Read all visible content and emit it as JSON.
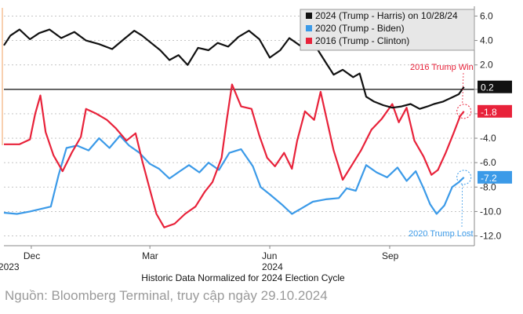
{
  "chart_data": {
    "type": "line",
    "subtitle": "Historic Data Normalized for 2024 Election Cycle",
    "ylim": [
      -12.8,
      6.8
    ],
    "y_ticks": [
      "6.0",
      "4.0",
      "2.0",
      "0.0",
      "-2.0",
      "-4.0",
      "-6.0",
      "-8.0",
      "-10.0",
      "-12.0"
    ],
    "y_tick_values": [
      6,
      4,
      2,
      0,
      -2,
      -4,
      -6,
      -8,
      -10,
      -12
    ],
    "x_range": [
      "2023-11-10",
      "2024-11-05"
    ],
    "x_ticks": [
      {
        "month": "Dec",
        "year": "2023",
        "date": "2023-12-01"
      },
      {
        "month": "Mar",
        "year": "",
        "date": "2024-03-01"
      },
      {
        "month": "Jun",
        "year": "2024",
        "date": "2024-06-01"
      },
      {
        "month": "Sep",
        "year": "",
        "date": "2024-09-01"
      }
    ],
    "grid": "horizontal-dashed",
    "zero_line": true,
    "legend_position": "top-right",
    "series": [
      {
        "name": "2024 (Trump - Harris) on 10/28/24",
        "color": "#111111",
        "last_value": "0.2",
        "points": [
          [
            "2023-11-10",
            3.6
          ],
          [
            "2023-11-15",
            4.4
          ],
          [
            "2023-11-22",
            4.9
          ],
          [
            "2023-11-30",
            4.1
          ],
          [
            "2023-12-07",
            4.6
          ],
          [
            "2023-12-15",
            4.9
          ],
          [
            "2023-12-24",
            4.2
          ],
          [
            "2024-01-03",
            4.7
          ],
          [
            "2024-01-12",
            4.0
          ],
          [
            "2024-01-22",
            3.7
          ],
          [
            "2024-02-01",
            3.3
          ],
          [
            "2024-02-10",
            4.1
          ],
          [
            "2024-02-18",
            4.8
          ],
          [
            "2024-02-24",
            4.4
          ],
          [
            "2024-03-02",
            3.8
          ],
          [
            "2024-03-09",
            3.2
          ],
          [
            "2024-03-16",
            2.4
          ],
          [
            "2024-03-23",
            2.8
          ],
          [
            "2024-03-30",
            2.0
          ],
          [
            "2024-04-07",
            3.4
          ],
          [
            "2024-04-15",
            3.2
          ],
          [
            "2024-04-22",
            3.8
          ],
          [
            "2024-04-30",
            3.5
          ],
          [
            "2024-05-08",
            4.3
          ],
          [
            "2024-05-16",
            4.8
          ],
          [
            "2024-05-24",
            4.1
          ],
          [
            "2024-06-01",
            2.6
          ],
          [
            "2024-06-09",
            3.2
          ],
          [
            "2024-06-16",
            4.2
          ],
          [
            "2024-06-24",
            3.6
          ],
          [
            "2024-07-01",
            3.8
          ],
          [
            "2024-07-08",
            3.2
          ],
          [
            "2024-07-14",
            2.2
          ],
          [
            "2024-07-20",
            1.2
          ],
          [
            "2024-07-27",
            1.6
          ],
          [
            "2024-08-04",
            1.0
          ],
          [
            "2024-08-09",
            1.3
          ],
          [
            "2024-08-14",
            -0.6
          ],
          [
            "2024-08-20",
            -1.0
          ],
          [
            "2024-08-27",
            -1.3
          ],
          [
            "2024-09-03",
            -1.5
          ],
          [
            "2024-09-10",
            -1.4
          ],
          [
            "2024-09-17",
            -1.2
          ],
          [
            "2024-09-24",
            -1.6
          ],
          [
            "2024-09-30",
            -1.4
          ],
          [
            "2024-10-05",
            -1.2
          ],
          [
            "2024-10-12",
            -1.0
          ],
          [
            "2024-10-18",
            -0.7
          ],
          [
            "2024-10-24",
            -0.4
          ],
          [
            "2024-10-28",
            0.2
          ]
        ]
      },
      {
        "name": "2020 (Trump - Biden)",
        "color": "#3b9ae8",
        "last_value": "-7.2",
        "points": [
          [
            "2023-11-10",
            -10.1
          ],
          [
            "2023-11-20",
            -10.2
          ],
          [
            "2023-11-30",
            -10.0
          ],
          [
            "2023-12-08",
            -9.8
          ],
          [
            "2023-12-16",
            -9.6
          ],
          [
            "2023-12-22",
            -7.0
          ],
          [
            "2023-12-28",
            -4.8
          ],
          [
            "2024-01-05",
            -4.6
          ],
          [
            "2024-01-14",
            -5.0
          ],
          [
            "2024-01-22",
            -4.0
          ],
          [
            "2024-01-30",
            -4.8
          ],
          [
            "2024-02-07",
            -3.8
          ],
          [
            "2024-02-14",
            -4.6
          ],
          [
            "2024-02-22",
            -5.2
          ],
          [
            "2024-03-01",
            -6.1
          ],
          [
            "2024-03-08",
            -6.5
          ],
          [
            "2024-03-16",
            -7.3
          ],
          [
            "2024-03-24",
            -6.7
          ],
          [
            "2024-03-31",
            -6.2
          ],
          [
            "2024-04-08",
            -6.8
          ],
          [
            "2024-04-15",
            -6.0
          ],
          [
            "2024-04-23",
            -6.6
          ],
          [
            "2024-05-01",
            -5.2
          ],
          [
            "2024-05-10",
            -4.9
          ],
          [
            "2024-05-19",
            -6.3
          ],
          [
            "2024-05-25",
            -8.0
          ],
          [
            "2024-06-01",
            -8.6
          ],
          [
            "2024-06-10",
            -9.4
          ],
          [
            "2024-06-18",
            -10.2
          ],
          [
            "2024-06-26",
            -9.7
          ],
          [
            "2024-07-04",
            -9.2
          ],
          [
            "2024-07-14",
            -9.0
          ],
          [
            "2024-07-24",
            -8.9
          ],
          [
            "2024-07-30",
            -8.1
          ],
          [
            "2024-08-06",
            -8.3
          ],
          [
            "2024-08-14",
            -6.2
          ],
          [
            "2024-08-22",
            -6.8
          ],
          [
            "2024-08-30",
            -7.2
          ],
          [
            "2024-09-07",
            -6.4
          ],
          [
            "2024-09-14",
            -7.5
          ],
          [
            "2024-09-21",
            -6.7
          ],
          [
            "2024-09-27",
            -8.1
          ],
          [
            "2024-10-02",
            -9.4
          ],
          [
            "2024-10-07",
            -10.2
          ],
          [
            "2024-10-13",
            -9.5
          ],
          [
            "2024-10-19",
            -8.0
          ],
          [
            "2024-10-24",
            -7.6
          ],
          [
            "2024-10-28",
            -7.2
          ]
        ]
      },
      {
        "name": "2016 (Trump - Clinton)",
        "color": "#e8223a",
        "last_value": "-1.8",
        "points": [
          [
            "2023-11-10",
            -4.5
          ],
          [
            "2023-11-22",
            -4.5
          ],
          [
            "2023-11-30",
            -4.1
          ],
          [
            "2023-12-04",
            -2.0
          ],
          [
            "2023-12-08",
            -0.5
          ],
          [
            "2023-12-12",
            -3.5
          ],
          [
            "2023-12-18",
            -5.4
          ],
          [
            "2023-12-25",
            -6.7
          ],
          [
            "2024-01-01",
            -5.2
          ],
          [
            "2024-01-08",
            -3.9
          ],
          [
            "2024-01-12",
            -1.6
          ],
          [
            "2024-01-20",
            -2.0
          ],
          [
            "2024-01-28",
            -2.5
          ],
          [
            "2024-02-04",
            -3.2
          ],
          [
            "2024-02-12",
            -4.2
          ],
          [
            "2024-02-19",
            -3.6
          ],
          [
            "2024-02-24",
            -5.8
          ],
          [
            "2024-03-01",
            -8.2
          ],
          [
            "2024-03-06",
            -10.2
          ],
          [
            "2024-03-12",
            -11.3
          ],
          [
            "2024-03-20",
            -11.0
          ],
          [
            "2024-03-28",
            -10.2
          ],
          [
            "2024-04-05",
            -9.6
          ],
          [
            "2024-04-12",
            -8.4
          ],
          [
            "2024-04-18",
            -7.6
          ],
          [
            "2024-04-25",
            -5.6
          ],
          [
            "2024-04-29",
            -2.5
          ],
          [
            "2024-05-03",
            0.4
          ],
          [
            "2024-05-10",
            -1.4
          ],
          [
            "2024-05-18",
            -1.6
          ],
          [
            "2024-05-24",
            -3.8
          ],
          [
            "2024-05-30",
            -5.6
          ],
          [
            "2024-06-05",
            -6.3
          ],
          [
            "2024-06-12",
            -5.2
          ],
          [
            "2024-06-18",
            -6.5
          ],
          [
            "2024-06-22",
            -4.2
          ],
          [
            "2024-06-28",
            -1.8
          ],
          [
            "2024-07-05",
            -2.5
          ],
          [
            "2024-07-10",
            -0.2
          ],
          [
            "2024-07-15",
            -2.6
          ],
          [
            "2024-07-20",
            -5.0
          ],
          [
            "2024-07-27",
            -7.4
          ],
          [
            "2024-08-03",
            -6.2
          ],
          [
            "2024-08-10",
            -5.0
          ],
          [
            "2024-08-18",
            -3.3
          ],
          [
            "2024-08-26",
            -2.4
          ],
          [
            "2024-09-03",
            -1.2
          ],
          [
            "2024-09-08",
            -2.7
          ],
          [
            "2024-09-14",
            -1.5
          ],
          [
            "2024-09-20",
            -4.2
          ],
          [
            "2024-09-27",
            -5.5
          ],
          [
            "2024-10-03",
            -7.0
          ],
          [
            "2024-10-08",
            -6.6
          ],
          [
            "2024-10-14",
            -5.2
          ],
          [
            "2024-10-20",
            -3.6
          ],
          [
            "2024-10-25",
            -2.2
          ],
          [
            "2024-10-28",
            -1.8
          ]
        ]
      }
    ],
    "annotations": [
      {
        "text": "2016 Trump Win",
        "color": "#e8223a",
        "target_series": 2
      },
      {
        "text": "2020 Trump Lost",
        "color": "#3b9ae8",
        "target_series": 1
      }
    ]
  },
  "source": "Nguồn: Bloomberg Terminal, truy cập ngày 29.10.2024"
}
